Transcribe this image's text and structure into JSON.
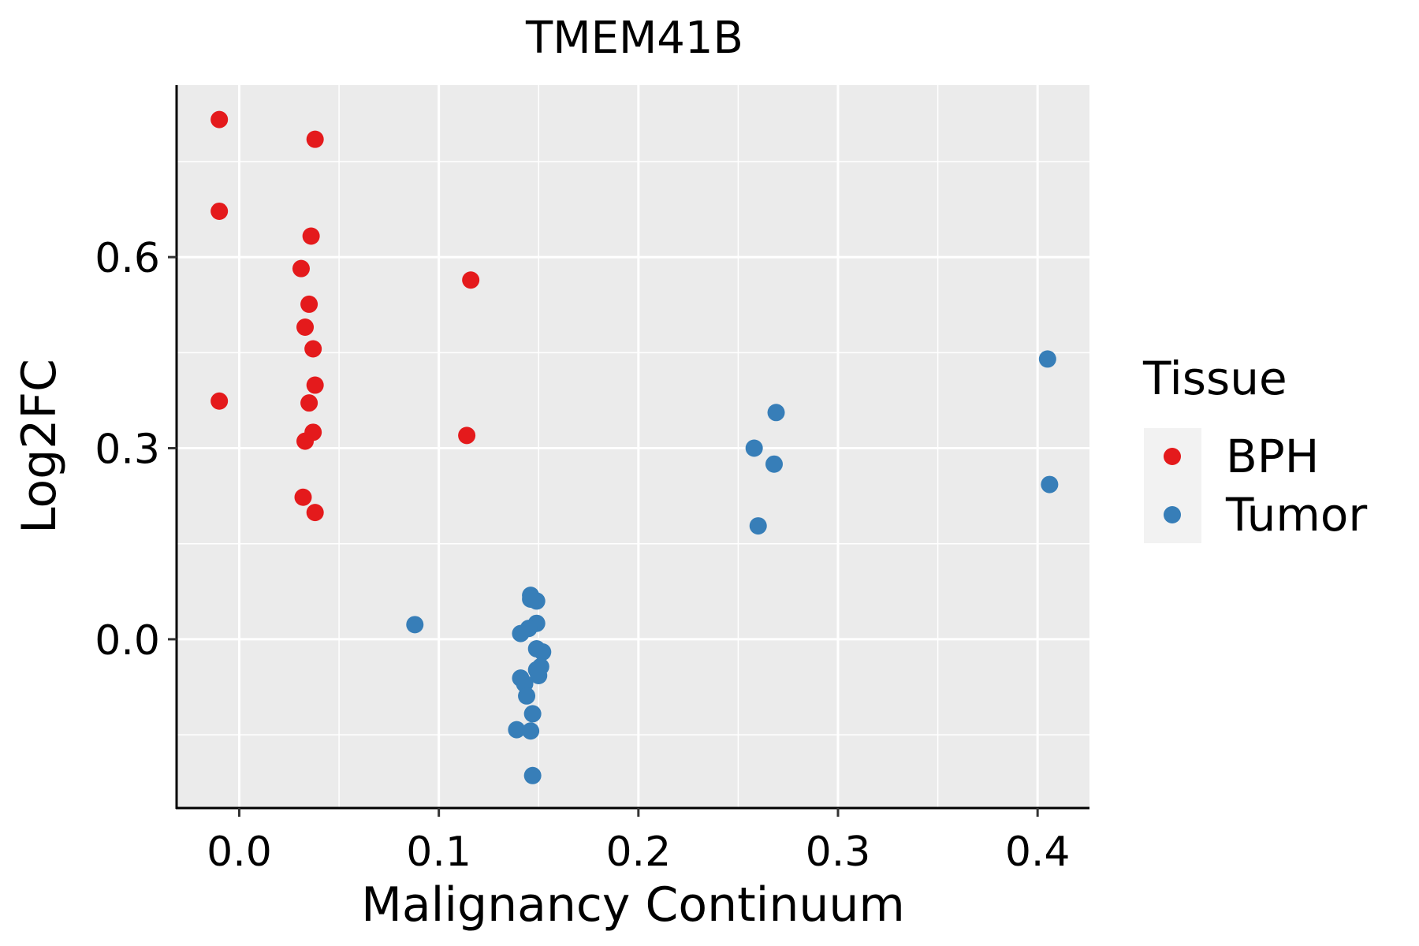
{
  "chart_data": {
    "type": "scatter",
    "title": "TMEM41B",
    "xlabel": "Malignancy Continuum",
    "ylabel": "Log2FC",
    "xlim": [
      -0.031,
      0.426
    ],
    "ylim": [
      -0.265,
      0.87
    ],
    "x_ticks": [
      0.0,
      0.1,
      0.2,
      0.3,
      0.4
    ],
    "x_tick_labels": [
      "0.0",
      "0.1",
      "0.2",
      "0.3",
      "0.4"
    ],
    "y_ticks": [
      0.0,
      0.3,
      0.6
    ],
    "y_tick_labels": [
      "0.0",
      "0.3",
      "0.6"
    ],
    "grid": true,
    "legend": {
      "title": "Tissue",
      "position": "right",
      "entries": [
        {
          "label": "BPH",
          "color": "#E41A1C"
        },
        {
          "label": "Tumor",
          "color": "#377EB8"
        }
      ]
    },
    "series": [
      {
        "name": "BPH",
        "color": "#E41A1C",
        "points": [
          [
            -0.01,
            0.816
          ],
          [
            0.038,
            0.785
          ],
          [
            -0.01,
            0.672
          ],
          [
            0.036,
            0.633
          ],
          [
            0.031,
            0.582
          ],
          [
            0.116,
            0.564
          ],
          [
            0.035,
            0.526
          ],
          [
            0.033,
            0.49
          ],
          [
            0.037,
            0.456
          ],
          [
            0.038,
            0.399
          ],
          [
            -0.01,
            0.374
          ],
          [
            0.035,
            0.371
          ],
          [
            0.037,
            0.325
          ],
          [
            0.114,
            0.32
          ],
          [
            0.033,
            0.311
          ],
          [
            0.032,
            0.223
          ],
          [
            0.038,
            0.199
          ]
        ]
      },
      {
        "name": "Tumor",
        "color": "#377EB8",
        "points": [
          [
            0.405,
            0.44
          ],
          [
            0.269,
            0.356
          ],
          [
            0.258,
            0.3
          ],
          [
            0.268,
            0.275
          ],
          [
            0.406,
            0.243
          ],
          [
            0.26,
            0.178
          ],
          [
            0.146,
            0.069
          ],
          [
            0.146,
            0.063
          ],
          [
            0.149,
            0.06
          ],
          [
            0.149,
            0.025
          ],
          [
            0.088,
            0.023
          ],
          [
            0.145,
            0.017
          ],
          [
            0.141,
            0.009
          ],
          [
            0.149,
            -0.015
          ],
          [
            0.152,
            -0.02
          ],
          [
            0.151,
            -0.043
          ],
          [
            0.149,
            -0.048
          ],
          [
            0.15,
            -0.057
          ],
          [
            0.141,
            -0.061
          ],
          [
            0.143,
            -0.07
          ],
          [
            0.144,
            -0.089
          ],
          [
            0.147,
            -0.117
          ],
          [
            0.139,
            -0.142
          ],
          [
            0.146,
            -0.144
          ],
          [
            0.147,
            -0.214
          ]
        ]
      }
    ]
  }
}
